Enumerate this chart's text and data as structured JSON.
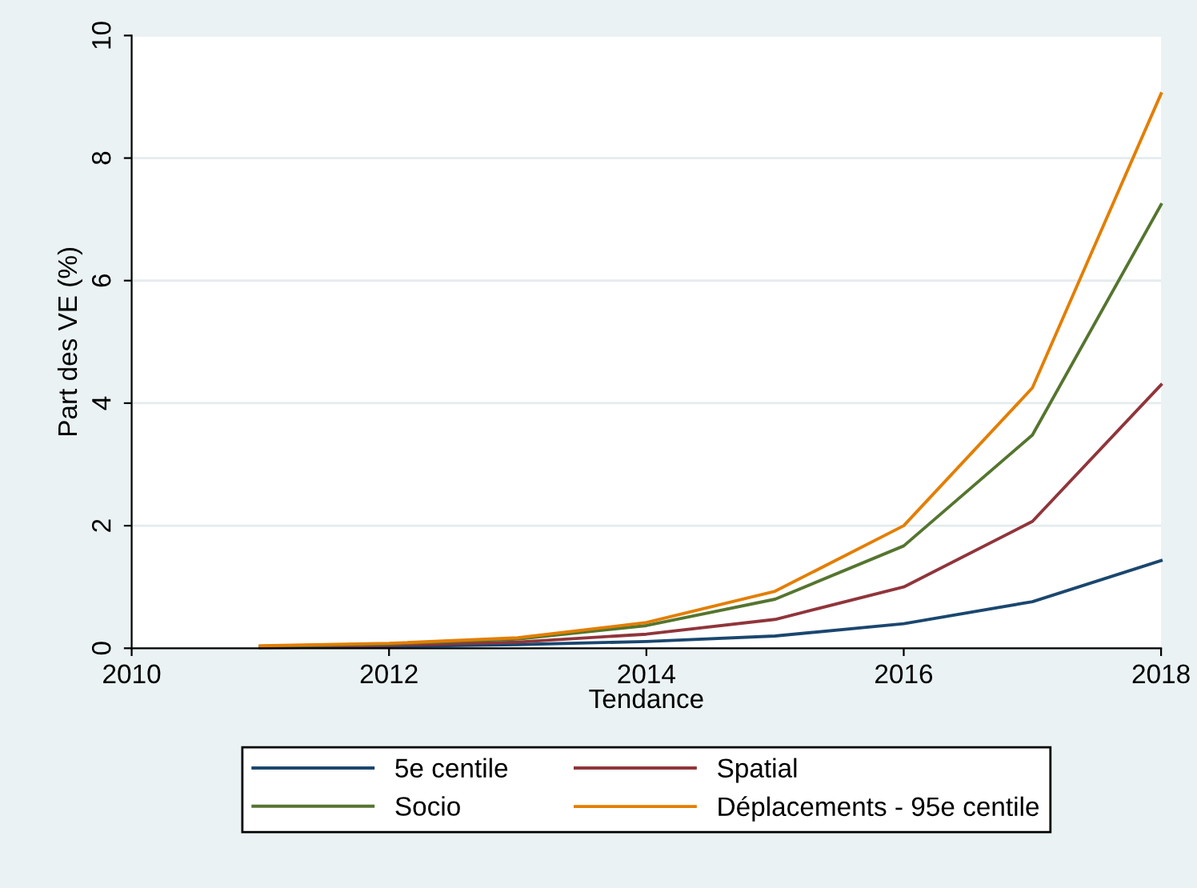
{
  "chart_data": {
    "type": "line",
    "xlabel": "Tendance",
    "ylabel": "Part des VE (%)",
    "x": [
      2011,
      2012,
      2013,
      2014,
      2015,
      2016,
      2017,
      2018
    ],
    "series": [
      {
        "name": "5e centile",
        "color": "#1a476f",
        "values": [
          0.01,
          0.03,
          0.06,
          0.11,
          0.2,
          0.4,
          0.76,
          1.43
        ]
      },
      {
        "name": "Spatial",
        "color": "#90353b",
        "values": [
          0.02,
          0.05,
          0.1,
          0.23,
          0.47,
          1.0,
          2.07,
          4.3
        ]
      },
      {
        "name": "Socio",
        "color": "#55752f",
        "values": [
          0.03,
          0.07,
          0.15,
          0.37,
          0.8,
          1.67,
          3.48,
          7.24
        ]
      },
      {
        "name": "Déplacements - 95e centile",
        "color": "#e37e00",
        "values": [
          0.04,
          0.08,
          0.17,
          0.42,
          0.93,
          2.0,
          4.25,
          9.05
        ]
      }
    ],
    "xlim": [
      2010,
      2018
    ],
    "xticks": [
      2010,
      2012,
      2014,
      2016,
      2018
    ],
    "ylim": [
      0,
      10
    ],
    "yticks": [
      0,
      2,
      4,
      6,
      8,
      10
    ],
    "grid": "y",
    "legend": "bottom",
    "marker": "none",
    "line_style": "solid"
  }
}
